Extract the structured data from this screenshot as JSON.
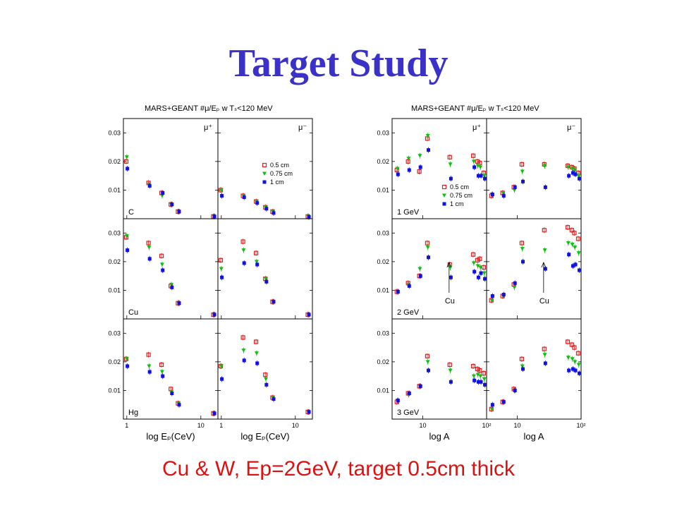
{
  "slide": {
    "title": "Target Study",
    "caption": "Cu & W, Ep=2GeV, target 0.5cm thick"
  },
  "colors": {
    "title": "#3a32c8",
    "caption": "#dd1111",
    "s0": "#e02020",
    "s1": "#10c010",
    "s2": "#1010e0"
  },
  "legend": [
    "0.5 cm",
    "0.75 cm",
    "1 cm"
  ],
  "chart_data": [
    {
      "type": "scatter",
      "title": "MARS+GEANT #μ/Eₚ w Tₛ<120 MeV",
      "xlabel": "log Eₚ(CeV)",
      "xscale": "log",
      "xlim": [
        0.9,
        17
      ],
      "ylim": [
        0,
        0.035
      ],
      "xticks": [
        {
          "v": 1,
          "t": "1"
        },
        {
          "v": 10,
          "t": "10"
        }
      ],
      "yticks": [
        {
          "v": 0.01,
          "t": "0.01"
        },
        {
          "v": 0.02,
          "t": "0.02"
        },
        {
          "v": 0.03,
          "t": "0.03"
        }
      ],
      "column_labels": [
        "μ⁺",
        "μ⁻"
      ],
      "row_labels": [
        "C",
        "Cu",
        "Hg"
      ],
      "x": [
        1,
        2,
        3,
        4,
        5,
        15
      ],
      "panels": [
        {
          "row": 0,
          "col": 0,
          "series": [
            {
              "values": [
                0.02,
                0.0125,
                0.009,
                0.005,
                0.0025,
                0.0008
              ]
            },
            {
              "values": [
                0.0215,
                0.012,
                0.008,
                0.005,
                0.0025,
                0.0008
              ]
            },
            {
              "values": [
                0.0175,
                0.0115,
                0.009,
                0.005,
                0.0025,
                0.0008
              ]
            }
          ]
        },
        {
          "row": 0,
          "col": 1,
          "series": [
            {
              "values": [
                0.01,
                0.008,
                0.006,
                0.004,
                0.0025,
                0.0008
              ]
            },
            {
              "values": [
                0.01,
                0.008,
                0.006,
                0.004,
                0.0025,
                0.0008
              ]
            },
            {
              "values": [
                0.008,
                0.0075,
                0.0055,
                0.0035,
                0.002,
                0.0006
              ]
            }
          ]
        },
        {
          "row": 1,
          "col": 0,
          "series": [
            {
              "values": [
                0.0285,
                0.0265,
                0.022,
                0.0115,
                0.0055,
                0.0015
              ]
            },
            {
              "values": [
                0.029,
                0.025,
                0.019,
                0.012,
                0.0055,
                0.0015
              ]
            },
            {
              "values": [
                0.024,
                0.021,
                0.017,
                0.011,
                0.0055,
                0.0015
              ]
            }
          ]
        },
        {
          "row": 1,
          "col": 1,
          "series": [
            {
              "values": [
                0.0205,
                0.027,
                0.023,
                0.014,
                0.006,
                0.0015
              ]
            },
            {
              "values": [
                0.0175,
                0.024,
                0.02,
                0.014,
                0.006,
                0.0015
              ]
            },
            {
              "values": [
                0.0145,
                0.0195,
                0.019,
                0.013,
                0.006,
                0.0015
              ]
            }
          ]
        },
        {
          "row": 2,
          "col": 0,
          "series": [
            {
              "values": [
                0.021,
                0.0225,
                0.019,
                0.0105,
                0.0055,
                0.002
              ]
            },
            {
              "values": [
                0.021,
                0.0185,
                0.0165,
                0.0095,
                0.0055,
                0.002
              ]
            },
            {
              "values": [
                0.0185,
                0.0165,
                0.015,
                0.009,
                0.005,
                0.002
              ]
            }
          ]
        },
        {
          "row": 2,
          "col": 1,
          "series": [
            {
              "values": [
                0.0185,
                0.0285,
                0.027,
                0.0155,
                0.0075,
                0.0025
              ]
            },
            {
              "values": [
                0.0185,
                0.024,
                0.023,
                0.014,
                0.0075,
                0.0025
              ]
            },
            {
              "values": [
                0.014,
                0.0205,
                0.0195,
                0.012,
                0.007,
                0.0025
              ]
            }
          ]
        }
      ]
    },
    {
      "type": "scatter",
      "title": "MARS+GEANT #μ/Eₚ w Tₛ<120 MeV",
      "xlabel": "log A",
      "xscale": "log",
      "xlim": [
        3.3,
        100
      ],
      "ylim": [
        0,
        0.035
      ],
      "xticks": [
        {
          "v": 10,
          "t": "10"
        },
        {
          "v": 100,
          "t": "10²"
        }
      ],
      "yticks": [
        {
          "v": 0.01,
          "t": "0.01"
        },
        {
          "v": 0.02,
          "t": "0.02"
        },
        {
          "v": 0.03,
          "t": "0.03"
        }
      ],
      "column_labels": [
        "μ⁺",
        "μ⁻"
      ],
      "row_labels": [
        "1 GeV",
        "2 GeV",
        "3 GeV"
      ],
      "annotation_text": "Cu",
      "annotation_x": 63,
      "x": [
        4,
        6,
        9,
        12,
        27,
        63,
        73,
        80,
        92
      ],
      "panels": [
        {
          "row": 0,
          "col": 0,
          "series": [
            {
              "values": [
                0.017,
                0.02,
                0.0165,
                0.028,
                0.0215,
                0.022,
                0.02,
                0.0195,
                0.016
              ]
            },
            {
              "values": [
                0.0175,
                0.021,
                0.022,
                0.029,
                0.019,
                0.02,
                0.0185,
                0.018,
                0.015
              ]
            },
            {
              "values": [
                0.0155,
                0.017,
                0.018,
                0.024,
                0.014,
                0.018,
                0.015,
                0.015,
                0.014
              ]
            }
          ]
        },
        {
          "row": 0,
          "col": 1,
          "series": [
            {
              "values": [
                0.008,
                0.009,
                0.011,
                0.019,
                0.019,
                0.0185,
                0.018,
                0.0175,
                0.016
              ]
            },
            {
              "values": [
                0.0085,
                0.009,
                0.01,
                0.0165,
                0.0185,
                0.018,
                0.0175,
                0.017,
                0.015
              ]
            },
            {
              "values": [
                0.0085,
                0.008,
                0.011,
                0.013,
                0.011,
                0.015,
                0.016,
                0.0155,
                0.014
              ]
            }
          ]
        },
        {
          "row": 1,
          "col": 0,
          "series": [
            {
              "values": [
                0.0095,
                0.0125,
                0.015,
                0.0265,
                0.019,
                0.0225,
                0.0205,
                0.021,
                0.018
              ]
            },
            {
              "values": [
                0.0095,
                0.012,
                0.0175,
                0.025,
                0.018,
                0.0195,
                0.0185,
                0.018,
                0.016
              ]
            },
            {
              "values": [
                0.0095,
                0.0115,
                0.015,
                0.0215,
                0.0145,
                0.0165,
                0.0145,
                0.016,
                0.014
              ]
            }
          ]
        },
        {
          "row": 1,
          "col": 1,
          "series": [
            {
              "values": [
                0.0065,
                0.008,
                0.012,
                0.0265,
                0.031,
                0.032,
                0.031,
                0.03,
                0.028
              ]
            },
            {
              "values": [
                0.0065,
                0.008,
                0.011,
                0.0245,
                0.024,
                0.0265,
                0.026,
                0.025,
                0.023
              ]
            },
            {
              "values": [
                0.008,
                0.0085,
                0.0125,
                0.02,
                0.0175,
                0.0225,
                0.0185,
                0.019,
                0.017
              ]
            }
          ]
        },
        {
          "row": 2,
          "col": 0,
          "series": [
            {
              "values": [
                0.006,
                0.009,
                0.0115,
                0.022,
                0.019,
                0.0185,
                0.0175,
                0.017,
                0.016
              ]
            },
            {
              "values": [
                0.0065,
                0.0085,
                0.0115,
                0.02,
                0.017,
                0.015,
                0.0155,
                0.015,
                0.014
              ]
            },
            {
              "values": [
                0.0065,
                0.009,
                0.0115,
                0.017,
                0.013,
                0.0135,
                0.013,
                0.013,
                0.012
              ]
            }
          ]
        },
        {
          "row": 2,
          "col": 1,
          "series": [
            {
              "values": [
                0.0035,
                0.006,
                0.0105,
                0.021,
                0.0245,
                0.027,
                0.026,
                0.025,
                0.023
              ]
            },
            {
              "values": [
                0.0035,
                0.006,
                0.01,
                0.0185,
                0.0225,
                0.0215,
                0.021,
                0.02,
                0.019
              ]
            },
            {
              "values": [
                0.005,
                0.006,
                0.01,
                0.0175,
                0.0195,
                0.017,
                0.0175,
                0.017,
                0.016
              ]
            }
          ]
        }
      ]
    }
  ]
}
